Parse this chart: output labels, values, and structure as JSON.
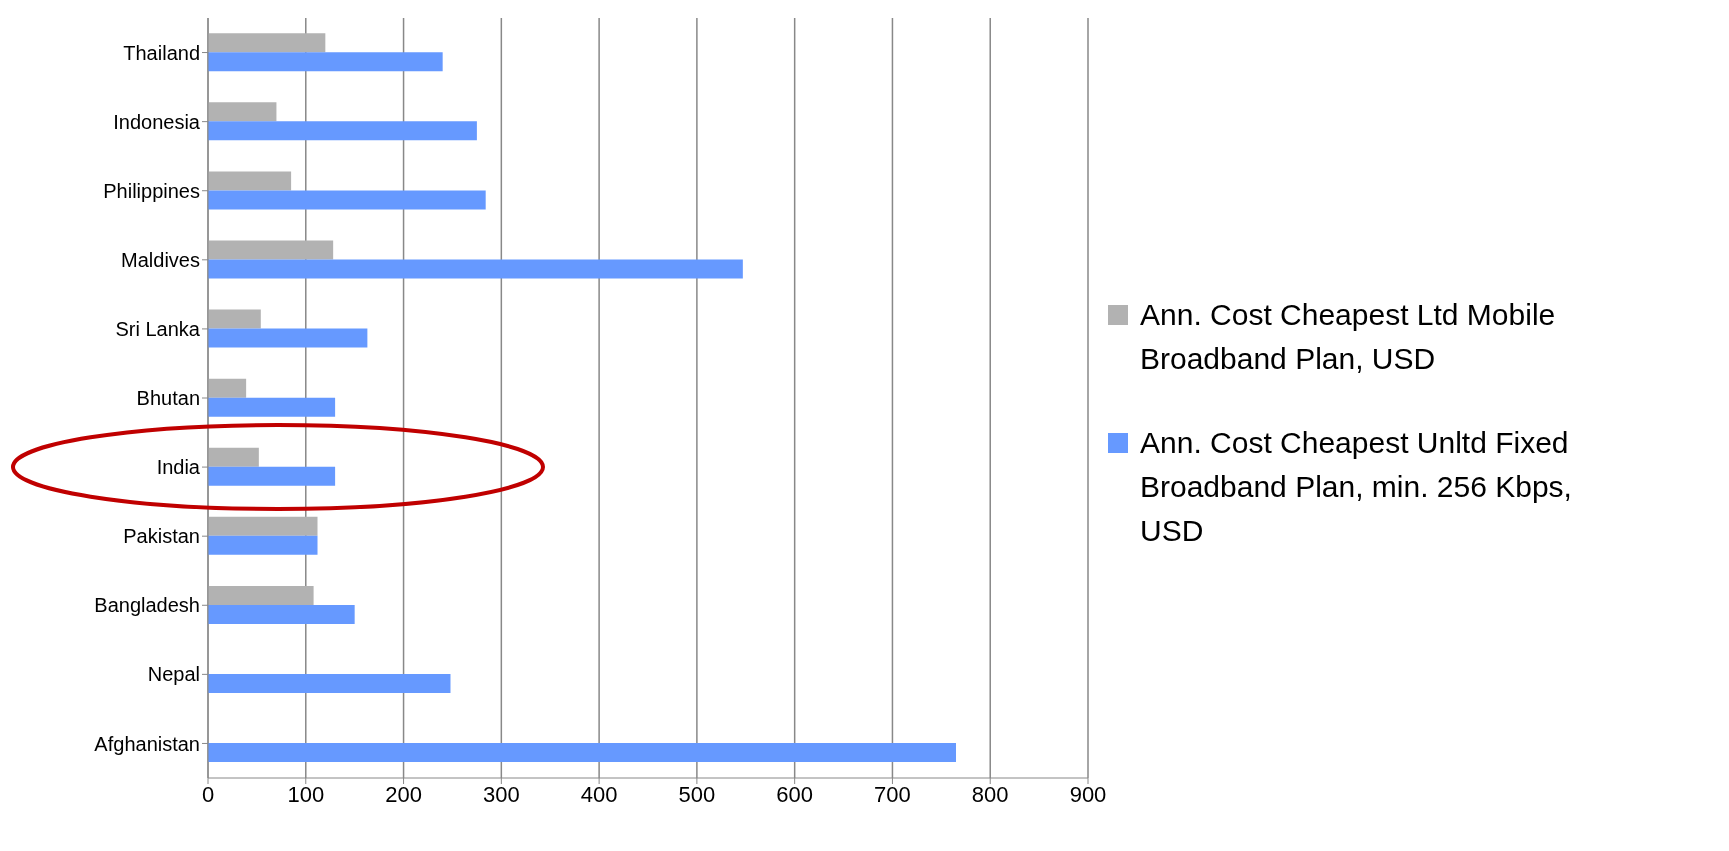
{
  "chart_data": {
    "type": "bar",
    "orientation": "horizontal",
    "categories": [
      "Thailand",
      "Indonesia",
      "Philippines",
      "Maldives",
      "Sri Lanka",
      "Bhutan",
      "India",
      "Pakistan",
      "Bangladesh",
      "Nepal",
      "Afghanistan"
    ],
    "series": [
      {
        "name": "Ann. Cost Cheapest Ltd Mobile Broadband Plan, USD",
        "color": "#b2b2b2",
        "values": [
          120,
          70,
          85,
          128,
          54,
          39,
          52,
          112,
          108,
          null,
          null
        ]
      },
      {
        "name": "Ann. Cost Cheapest Unltd Fixed Broadband Plan, min. 256 Kbps, USD",
        "color": "#6699ff",
        "values": [
          240,
          275,
          284,
          547,
          163,
          130,
          130,
          112,
          150,
          248,
          765
        ]
      }
    ],
    "xlim": [
      0,
      900
    ],
    "xticks": [
      0,
      100,
      200,
      300,
      400,
      500,
      600,
      700,
      800,
      900
    ],
    "grid": "x",
    "legend": "right"
  }
}
